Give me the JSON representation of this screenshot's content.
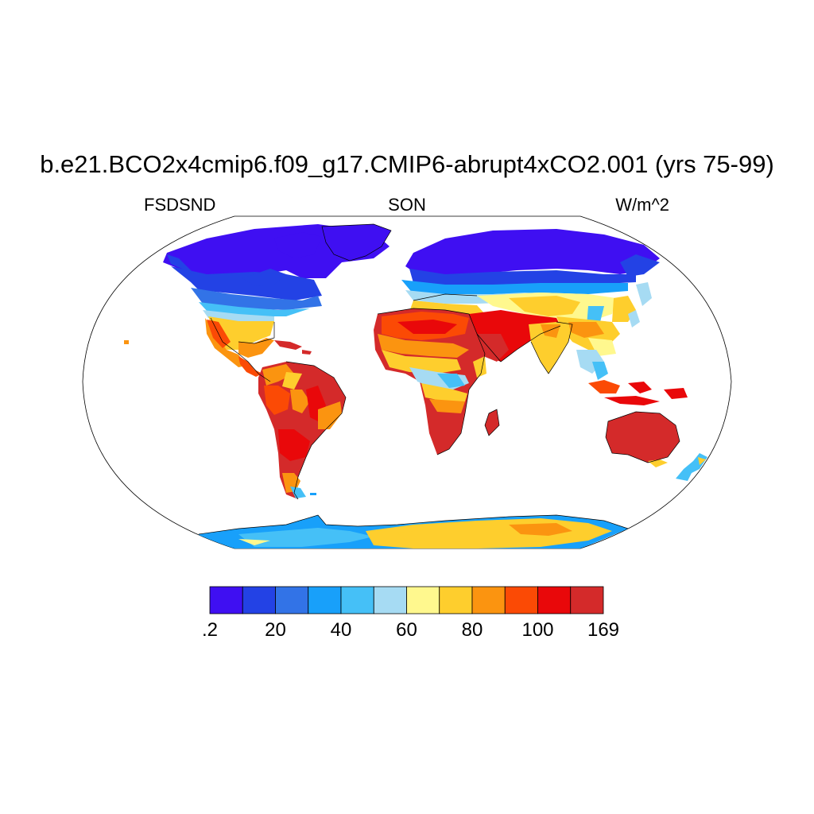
{
  "header": {
    "title": "b.e21.BCO2x4cmip6.f09_g17.CMIP6-abrupt4xCO2.001 (yrs 75-99)",
    "left_label": "FSDSND",
    "center_label": "SON",
    "right_label": "W/m^2"
  },
  "map": {
    "projection": "robinson",
    "field": "FSDSND",
    "season": "SON",
    "units": "W/m^2",
    "colors": {
      "ocean": "#ffffff",
      "coastline": "#000000"
    }
  },
  "colorbar": {
    "colors": [
      "#3f0ff2",
      "#2342e5",
      "#3273e7",
      "#18a0fa",
      "#45c0f7",
      "#a6dbf3",
      "#fff88e",
      "#fece2d",
      "#fb9410",
      "#fb4a05",
      "#e9080a",
      "#d42a2a"
    ],
    "tick_labels": [
      ".2",
      "20",
      "40",
      "60",
      "80",
      "100",
      "169"
    ],
    "min": 0.2,
    "max": 169,
    "levels": [
      10,
      20,
      30,
      40,
      50,
      60,
      70,
      80,
      90,
      100,
      110
    ]
  }
}
